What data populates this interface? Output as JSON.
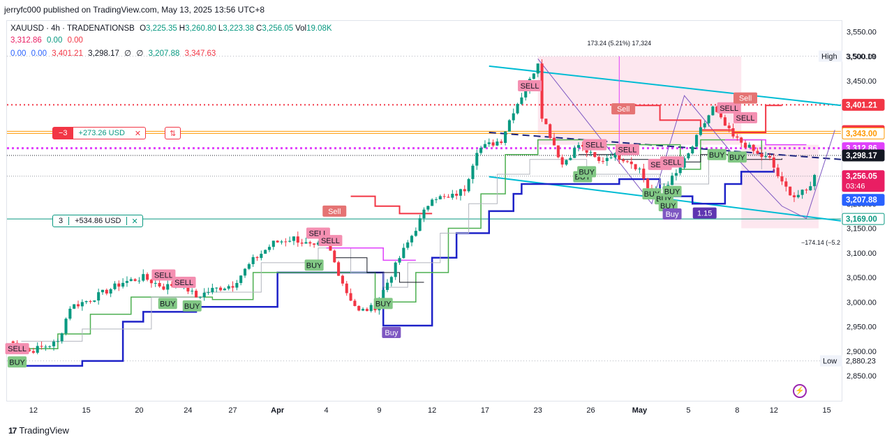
{
  "header": {
    "published": "jerryfc000 published on TradingView.com, May 13, 2025 13:56 UTC+8"
  },
  "legend": {
    "symbol": "XAUUSD · 4h · TRADENATIONSB",
    "ohlc": [
      {
        "k": "O",
        "v": "3,225.35"
      },
      {
        "k": "H",
        "v": "3,260.80"
      },
      {
        "k": "L",
        "v": "3,223.38"
      },
      {
        "k": "C",
        "v": "3,256.05"
      },
      {
        "k": "Vol",
        "v": "19.08K"
      }
    ],
    "row2": [
      "3,312.86",
      "0.00",
      "0.00"
    ],
    "row3": [
      "0.00",
      "0.00",
      "3,401.21",
      "3,298.17",
      "∅",
      "∅",
      "3,207.88",
      "3,347.63"
    ]
  },
  "positions": [
    {
      "qty": "−3",
      "pnl": "+273.26 USD",
      "close": "✕",
      "flip": "⇅",
      "color": "#f23645"
    },
    {
      "qty": "3",
      "pnl": "+534.86 USD",
      "close": "✕",
      "color": "#089981"
    }
  ],
  "measure": {
    "upper": "173.24 (5.21%) 17,324",
    "lower": "−174.14 (−5.2"
  },
  "badge_value": "1.15",
  "markers": {
    "sell": "SELL",
    "buy": "BUY",
    "Sell": "Sell",
    "Buy": "Buy"
  },
  "price_labels": [
    {
      "text": "3,401.21",
      "price": 3401.21,
      "bg": "#f23645",
      "fg": "#ffffff"
    },
    {
      "text": "3,347.63",
      "price": 3347.63,
      "bg": "#f23645",
      "fg": "#ffffff"
    },
    {
      "text": "3,347.29",
      "price": 3347.29,
      "bg": "#f23645",
      "fg": "#ffffff"
    },
    {
      "text": "3,343.00",
      "price": 3343.0,
      "bg": "#ffffff",
      "fg": "#ff9800",
      "border": "#ff9800"
    },
    {
      "text": "3,312.86",
      "price": 3312.86,
      "bg": "#e040fb",
      "fg": "#ffffff"
    },
    {
      "text": "3,298.17",
      "price": 3298.17,
      "bg": "#131722",
      "fg": "#ffffff"
    },
    {
      "text": "3,256.05",
      "sub": "03:46",
      "price": 3256.05,
      "bg": "#e91e63",
      "fg": "#ffffff"
    },
    {
      "text": "3,207.88",
      "price": 3207.88,
      "bg": "#2962ff",
      "fg": "#ffffff"
    },
    {
      "text": "3,169.00",
      "price": 3169.0,
      "bg": "#ffffff",
      "fg": "#089981",
      "border": "#089981"
    }
  ],
  "high_label": {
    "tag": "High",
    "value": "3,500.19",
    "price": 3500.19
  },
  "low_label": {
    "tag": "Low",
    "value": "2,880.23",
    "price": 2880.23
  },
  "footer": {
    "brand": "TradingView"
  },
  "chart_data": {
    "type": "candlestick",
    "interval": "4h",
    "symbol": "XAUUSD",
    "y_axis_ticks": [
      3550,
      3500,
      3450,
      3400,
      3350,
      3300,
      3250,
      3200,
      3150,
      3100,
      3050,
      3000,
      2950,
      2900,
      2850
    ],
    "y_tick_labels": [
      "3,550.00",
      "3,500.00",
      "3,450.00",
      "3,400.00",
      "3,350.00",
      "3,300.00",
      "3,250.00",
      "3,200.00",
      "3,150.00",
      "3,100.00",
      "3,050.00",
      "3,000.00",
      "2,950.00",
      "2,900.00",
      "2,850.00"
    ],
    "ylim": [
      2823,
      3597
    ],
    "x_tick_labels": [
      "12",
      "15",
      "20",
      "24",
      "27",
      "Apr",
      "4",
      "9",
      "12",
      "17",
      "23",
      "26",
      "May",
      "5",
      "8",
      "12",
      "15"
    ],
    "x_tick_index": [
      6,
      19,
      32,
      44,
      55,
      66,
      78,
      91,
      104,
      117,
      130,
      143,
      155,
      167,
      179,
      188,
      201
    ],
    "n_bars": 205,
    "close_path_knots": [
      [
        0,
        2920
      ],
      [
        5,
        2900
      ],
      [
        12,
        2918
      ],
      [
        15,
        2990
      ],
      [
        20,
        3005
      ],
      [
        28,
        3040
      ],
      [
        33,
        3050
      ],
      [
        38,
        3030
      ],
      [
        42,
        3040
      ],
      [
        46,
        3010
      ],
      [
        50,
        3025
      ],
      [
        55,
        3035
      ],
      [
        60,
        3085
      ],
      [
        65,
        3120
      ],
      [
        70,
        3130
      ],
      [
        75,
        3110
      ],
      [
        78,
        3125
      ],
      [
        80,
        3080
      ],
      [
        83,
        3020
      ],
      [
        86,
        2980
      ],
      [
        90,
        2990
      ],
      [
        93,
        3040
      ],
      [
        96,
        3090
      ],
      [
        100,
        3150
      ],
      [
        104,
        3215
      ],
      [
        108,
        3210
      ],
      [
        112,
        3230
      ],
      [
        115,
        3310
      ],
      [
        118,
        3320
      ],
      [
        121,
        3330
      ],
      [
        124,
        3390
      ],
      [
        128,
        3450
      ],
      [
        130,
        3490
      ],
      [
        131,
        3380
      ],
      [
        133,
        3340
      ],
      [
        136,
        3280
      ],
      [
        140,
        3320
      ],
      [
        145,
        3285
      ],
      [
        148,
        3300
      ],
      [
        152,
        3290
      ],
      [
        155,
        3270
      ],
      [
        158,
        3215
      ],
      [
        161,
        3235
      ],
      [
        164,
        3260
      ],
      [
        167,
        3300
      ],
      [
        170,
        3350
      ],
      [
        173,
        3395
      ],
      [
        175,
        3370
      ],
      [
        178,
        3335
      ],
      [
        181,
        3320
      ],
      [
        184,
        3300
      ],
      [
        187,
        3290
      ],
      [
        190,
        3240
      ],
      [
        193,
        3215
      ],
      [
        196,
        3225
      ],
      [
        198,
        3256
      ]
    ],
    "levels": [
      {
        "name": "red dotted",
        "price": 3401.21
      },
      {
        "name": "orange",
        "price": 3347.29
      },
      {
        "name": "orange",
        "price": 3343.0
      },
      {
        "name": "magenta dotted",
        "price": 3312.86
      },
      {
        "name": "black dotted",
        "price": 3298.17
      },
      {
        "name": "gray dotted",
        "price": 3256.05
      },
      {
        "name": "teal",
        "price": 3169.0
      }
    ]
  }
}
